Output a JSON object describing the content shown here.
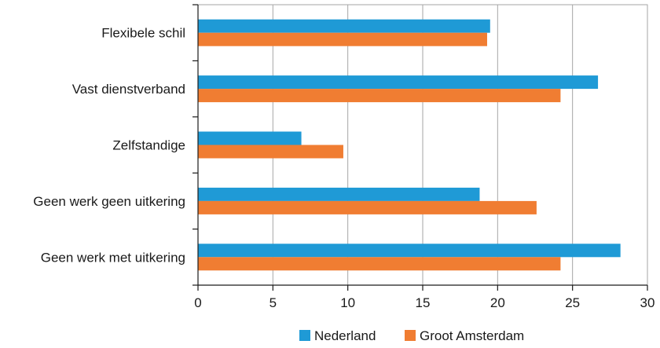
{
  "chart_data": {
    "type": "bar",
    "orientation": "horizontal",
    "categories": [
      "Flexibele schil",
      "Vast dienstverband",
      "Zelfstandige",
      "Geen werk geen uitkering",
      "Geen werk met uitkering"
    ],
    "series": [
      {
        "name": "Nederland",
        "values": [
          19.5,
          26.7,
          6.9,
          18.8,
          28.2
        ]
      },
      {
        "name": "Groot Amsterdam",
        "values": [
          19.3,
          24.2,
          9.7,
          22.6,
          24.2
        ]
      }
    ],
    "xlim": [
      0,
      30
    ],
    "xticks": [
      0,
      5,
      10,
      15,
      20,
      25,
      30
    ],
    "grid": true,
    "legend_position": "bottom",
    "title": "",
    "xlabel": "",
    "ylabel": ""
  },
  "colors": {
    "Nederland": "#1f9ad6",
    "Groot Amsterdam": "#f07d32",
    "grid": "#a6a6a6",
    "axis": "#1a1a1a"
  }
}
